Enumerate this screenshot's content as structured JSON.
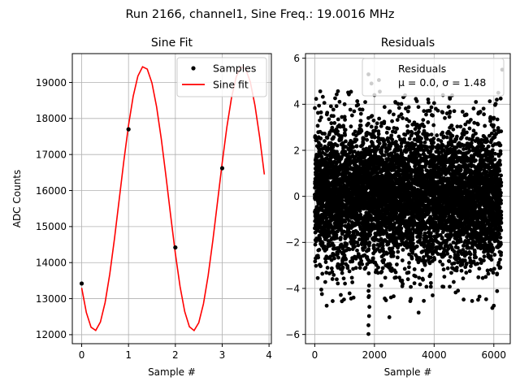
{
  "figure": {
    "title": "Run 2166, channel1, Sine Freq.: 19.0016 MHz"
  },
  "chart_data": [
    {
      "type": "line",
      "title": "Sine Fit",
      "xlabel": "Sample #",
      "ylabel": "ADC Counts",
      "xlim": [
        -0.2,
        4.05
      ],
      "ylim": [
        11750,
        19800
      ],
      "xticks": [
        0,
        1,
        2,
        3,
        4
      ],
      "yticks": [
        12000,
        13000,
        14000,
        15000,
        16000,
        17000,
        18000,
        19000
      ],
      "grid": true,
      "legend": "top-right",
      "fit_model": {
        "amplitude": 3670,
        "offset": 15780,
        "period": 2.105,
        "phase_x": 1.33
      },
      "series": [
        {
          "name": "Samples",
          "kind": "scatter",
          "color": "#000000",
          "x": [
            0,
            1,
            2,
            3
          ],
          "y": [
            13420,
            17700,
            14420,
            16620
          ]
        },
        {
          "name": "Sine fit",
          "kind": "line",
          "color": "#ff0000",
          "x_start": 0,
          "x_end": 3.9,
          "x_step": 0.1
        }
      ]
    },
    {
      "type": "scatter",
      "title": "Residuals",
      "xlabel": "Sample #",
      "ylabel": "",
      "xlim": [
        -310,
        6550
      ],
      "ylim": [
        -6.4,
        6.2
      ],
      "xticks": [
        0,
        2000,
        4000,
        6000
      ],
      "yticks": [
        -6,
        -4,
        -2,
        0,
        2,
        4,
        6
      ],
      "grid": true,
      "legend": "top-right",
      "n_points": 6250,
      "color": "#000000",
      "legend_lines": [
        "Residuals",
        "μ = 0.0, σ = 1.48"
      ],
      "stats": {
        "mean": 0.0,
        "sigma": 1.48
      },
      "outliers": [
        {
          "x": 1800,
          "y": -5.98
        },
        {
          "x": 1800,
          "y": -5.6
        },
        {
          "x": 1820,
          "y": -5.2
        },
        {
          "x": 1830,
          "y": -4.8
        },
        {
          "x": 2150,
          "y": 5.05
        },
        {
          "x": 6280,
          "y": 5.5
        },
        {
          "x": 1800,
          "y": 5.3
        },
        {
          "x": 1900,
          "y": 4.9
        },
        {
          "x": 2500,
          "y": -5.25
        },
        {
          "x": 3480,
          "y": -5.05
        },
        {
          "x": 5950,
          "y": -4.85
        },
        {
          "x": 6000,
          "y": -4.75
        },
        {
          "x": 400,
          "y": -4.75
        },
        {
          "x": 600,
          "y": -4.55
        },
        {
          "x": 220,
          "y": -4.05
        },
        {
          "x": 100,
          "y": -3.55
        },
        {
          "x": 2180,
          "y": 4.55
        },
        {
          "x": 2000,
          "y": 4.4
        },
        {
          "x": 6100,
          "y": 4.2
        },
        {
          "x": 6150,
          "y": 4.5
        },
        {
          "x": 2700,
          "y": 4.1
        },
        {
          "x": 4000,
          "y": 4.05
        },
        {
          "x": 1000,
          "y": 4.0
        },
        {
          "x": 5400,
          "y": 4.1
        },
        {
          "x": 3950,
          "y": -4.3
        },
        {
          "x": 3200,
          "y": -4.55
        },
        {
          "x": 4800,
          "y": -4.1
        },
        {
          "x": 1300,
          "y": -4.4
        }
      ]
    }
  ]
}
